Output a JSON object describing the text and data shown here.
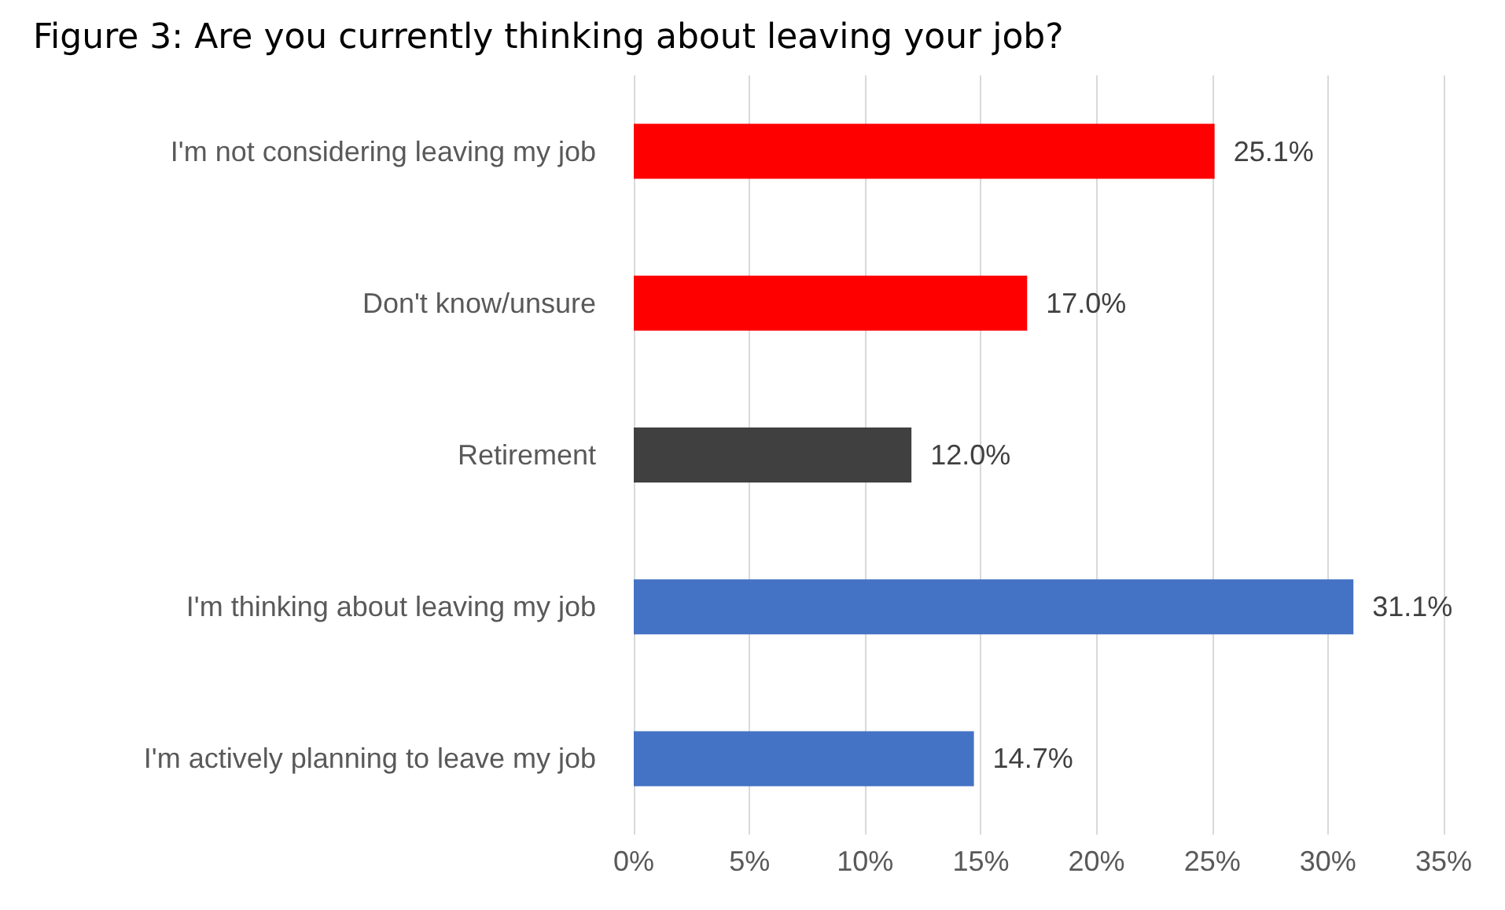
{
  "chart_data": {
    "type": "bar",
    "orientation": "horizontal",
    "title": "Figure 3: Are you currently thinking about leaving your job?",
    "categories": [
      "I'm not considering leaving my job",
      "Don't know/unsure",
      "Retirement",
      "I'm thinking about leaving my job",
      "I'm actively planning to leave my job"
    ],
    "values": [
      25.1,
      17.0,
      12.0,
      31.1,
      14.7
    ],
    "colors": [
      "#ff0000",
      "#ff0000",
      "#404040",
      "#4472c4",
      "#4472c4"
    ],
    "value_labels": [
      "25.1%",
      "17.0%",
      "12.0%",
      "31.1%",
      "14.7%"
    ],
    "xlim": [
      0,
      35
    ],
    "xticks": [
      {
        "value": 0,
        "label": "0%"
      },
      {
        "value": 5,
        "label": "5%"
      },
      {
        "value": 10,
        "label": "10%"
      },
      {
        "value": 15,
        "label": "15%"
      },
      {
        "value": 20,
        "label": "20%"
      },
      {
        "value": 25,
        "label": "25%"
      },
      {
        "value": 30,
        "label": "30%"
      },
      {
        "value": 35,
        "label": "35%"
      }
    ],
    "grid": "x"
  }
}
